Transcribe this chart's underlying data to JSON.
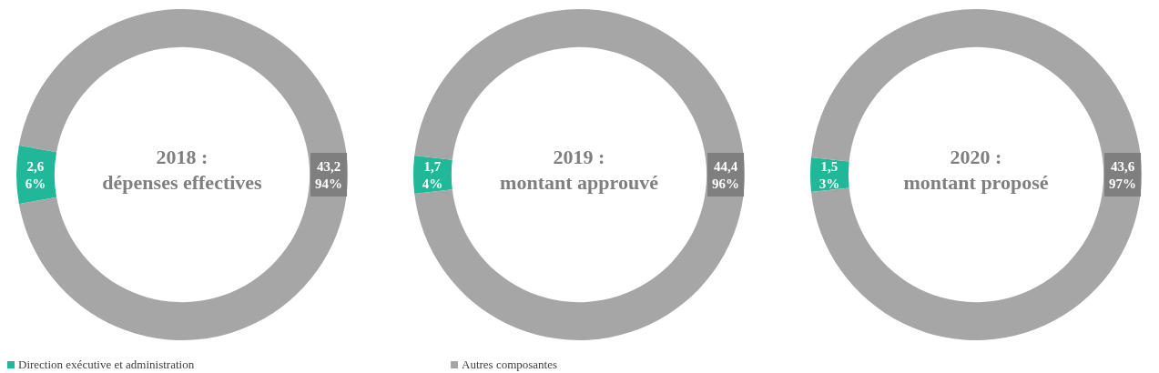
{
  "chart_data": [
    {
      "type": "donut",
      "title": "2018 : dépenses effectives",
      "categories": [
        "Direction exécutive et administration",
        "Autres composantes"
      ],
      "values": [
        2.6,
        43.2
      ],
      "colors": [
        "#20b898",
        "#a6a6a6"
      ],
      "value_labels": [
        "2,6 6%",
        "43,2 94%"
      ],
      "legend": "bottom"
    },
    {
      "type": "donut",
      "title": "2019 : montant approuvé",
      "categories": [
        null,
        null
      ],
      "values": [
        1.7,
        44.4
      ],
      "colors": [
        "#20b898",
        "#a6a6a6"
      ],
      "value_labels": [
        "1,7 4%",
        "44,4 96%"
      ]
    },
    {
      "type": "donut",
      "title": "2020 : montant proposé",
      "categories": [
        null,
        null
      ],
      "values": [
        1.5,
        43.6
      ],
      "colors": [
        "#20b898",
        "#a6a6a6"
      ],
      "value_labels": [
        "1,5 3%",
        "43,6 97%"
      ]
    }
  ]
}
